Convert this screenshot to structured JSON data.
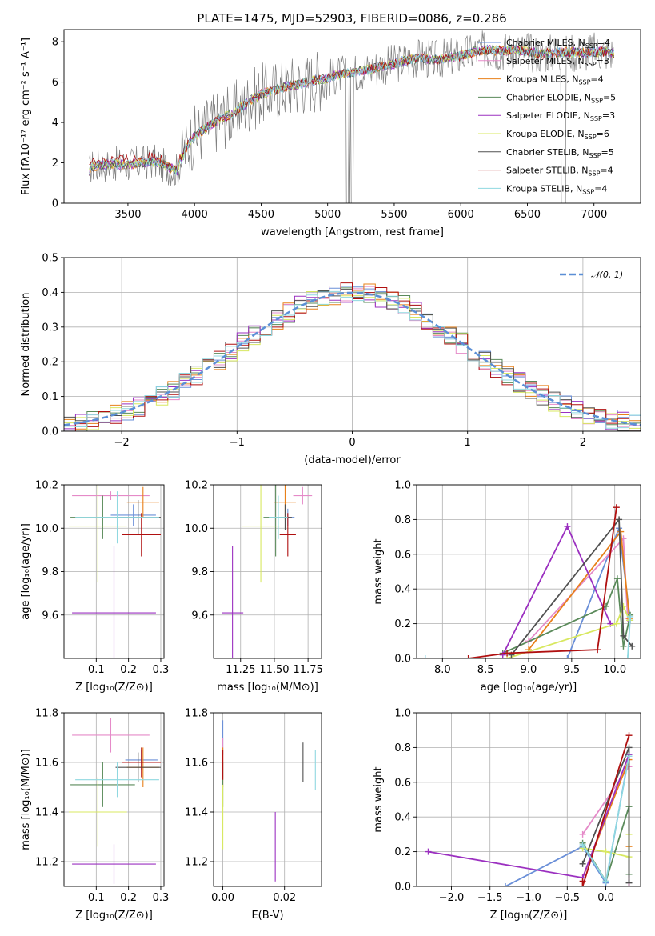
{
  "title": "PLATE=1475, MJD=52903, FIBERID=0086, z=0.286",
  "models": [
    {
      "name": "Chabrier MILES, N$_{SSP}$=4",
      "color": "#6a8fd8",
      "pre": "Chabrier MILES, N",
      "sub": "SSP",
      "post": "=4"
    },
    {
      "name": "Salpeter MILES, N$_{SSP}$=3",
      "color": "#e58ac8",
      "pre": "Salpeter MILES, N",
      "sub": "SSP",
      "post": "=3"
    },
    {
      "name": "Kroupa MILES, N$_{SSP}$=4",
      "color": "#e8801a",
      "pre": "Kroupa MILES, N",
      "sub": "SSP",
      "post": "=4"
    },
    {
      "name": "Chabrier ELODIE, N$_{SSP}$=5",
      "color": "#5a8a5a",
      "pre": "Chabrier ELODIE, N",
      "sub": "SSP",
      "post": "=5"
    },
    {
      "name": "Salpeter ELODIE, N$_{SSP}$=3",
      "color": "#9b30c0",
      "pre": "Salpeter ELODIE, N",
      "sub": "SSP",
      "post": "=3"
    },
    {
      "name": "Kroupa ELODIE, N$_{SSP}$=6",
      "color": "#d8e860",
      "pre": "Kroupa ELODIE, N",
      "sub": "SSP",
      "post": "=6"
    },
    {
      "name": "Chabrier STELIB, N$_{SSP}$=5",
      "color": "#505050",
      "pre": "Chabrier STELIB, N",
      "sub": "SSP",
      "post": "=5"
    },
    {
      "name": "Salpeter STELIB, N$_{SSP}$=4",
      "color": "#b01010",
      "pre": "Salpeter STELIB, N",
      "sub": "SSP",
      "post": "=4"
    },
    {
      "name": "Kroupa STELIB, N$_{SSP}$=4",
      "color": "#8fd8e0",
      "pre": "Kroupa STELIB, N",
      "sub": "SSP",
      "post": "=4"
    }
  ],
  "data_color": "#808080",
  "chart_data": [
    {
      "id": "spectrum",
      "type": "line",
      "xlabel": "wavelength [Angstrom, rest frame]",
      "ylabel": "Flux [fλ10⁻¹⁷ erg cm⁻² s⁻¹ A⁻¹]",
      "xlim": [
        3020,
        7350
      ],
      "ylim": [
        0,
        8.6
      ],
      "xticks": [
        3500,
        4000,
        4500,
        5000,
        5500,
        6000,
        6500,
        7000
      ],
      "yticks": [
        0,
        2,
        4,
        6,
        8
      ],
      "continuum": [
        [
          3210,
          1.5
        ],
        [
          3220,
          1.8
        ],
        [
          3300,
          1.9
        ],
        [
          3400,
          1.95
        ],
        [
          3500,
          1.9
        ],
        [
          3600,
          2.0
        ],
        [
          3700,
          2.05
        ],
        [
          3800,
          1.8
        ],
        [
          3870,
          1.6
        ],
        [
          3900,
          2.2
        ],
        [
          3950,
          2.9
        ],
        [
          4000,
          3.3
        ],
        [
          4100,
          3.8
        ],
        [
          4200,
          4.2
        ],
        [
          4300,
          4.5
        ],
        [
          4400,
          5.0
        ],
        [
          4500,
          5.4
        ],
        [
          4600,
          5.6
        ],
        [
          4700,
          5.8
        ],
        [
          4800,
          5.9
        ],
        [
          4900,
          6.1
        ],
        [
          5000,
          6.2
        ],
        [
          5100,
          6.4
        ],
        [
          5200,
          6.5
        ],
        [
          5300,
          6.6
        ],
        [
          5400,
          6.8
        ],
        [
          5500,
          6.9
        ],
        [
          5600,
          7.1
        ],
        [
          5700,
          7.2
        ],
        [
          5800,
          7.1
        ],
        [
          5900,
          7.2
        ],
        [
          6000,
          7.3
        ],
        [
          6100,
          7.5
        ],
        [
          6200,
          7.6
        ],
        [
          6300,
          7.55
        ],
        [
          6400,
          7.6
        ],
        [
          6500,
          7.5
        ],
        [
          6600,
          7.4
        ],
        [
          6700,
          7.45
        ],
        [
          6800,
          7.5
        ],
        [
          6900,
          7.45
        ],
        [
          7000,
          7.5
        ],
        [
          7100,
          7.5
        ],
        [
          7150,
          7.4
        ]
      ]
    },
    {
      "id": "residuals",
      "type": "histogram",
      "xlabel": "(data-model)/error",
      "ylabel": "Normed distribution",
      "xlim": [
        -2.5,
        2.5
      ],
      "ylim": [
        0,
        0.5
      ],
      "xticks": [
        -2,
        -1,
        0,
        1,
        2
      ],
      "yticks": [
        0.0,
        0.1,
        0.2,
        0.3,
        0.4,
        0.5
      ],
      "xtick_labels": [
        "−2",
        "−1",
        "0",
        "1",
        "2"
      ],
      "legend": "𝒩(0, 1)",
      "legend_position": "upper right",
      "bin_width": 0.1
    },
    {
      "id": "age-vs-z",
      "type": "errorbar",
      "xlabel": "Z [log₁₀(Z/Z⊙)]",
      "ylabel": "age  [log₁₀(age/yr)]",
      "xlim": [
        0.0,
        0.31
      ],
      "ylim": [
        9.4,
        10.2
      ],
      "xticks": [
        0.1,
        0.2,
        0.3
      ],
      "yticks": [
        9.6,
        9.8,
        10.0,
        10.2
      ],
      "points": [
        {
          "x": 0.215,
          "xe": 0.07,
          "y": 10.06,
          "ye": 0.05
        },
        {
          "x": 0.145,
          "xe": 0.12,
          "y": 10.15,
          "ye": 0.02
        },
        {
          "x": 0.245,
          "xe": 0.05,
          "y": 10.12,
          "ye": 0.07
        },
        {
          "x": 0.12,
          "xe": 0.1,
          "y": 10.05,
          "ye": 0.1
        },
        {
          "x": 0.155,
          "xe": 0.13,
          "y": 9.61,
          "ye": 0.31
        },
        {
          "x": 0.105,
          "xe": 0.09,
          "y": 10.01,
          "ye": 0.26
        },
        {
          "x": 0.23,
          "xe": 0.07,
          "y": 10.05,
          "ye": 0.08
        },
        {
          "x": 0.24,
          "xe": 0.06,
          "y": 9.97,
          "ye": 0.1
        },
        {
          "x": 0.165,
          "xe": 0.13,
          "y": 10.05,
          "ye": 0.12
        }
      ]
    },
    {
      "id": "age-vs-mass",
      "type": "errorbar",
      "xlabel": "mass [log₁₀(M/M⊙)]",
      "ylabel": "",
      "xlim": [
        11.05,
        11.85
      ],
      "ylim": [
        9.4,
        10.2
      ],
      "xticks": [
        11.25,
        11.5,
        11.75
      ],
      "yticks": [
        9.6,
        9.8,
        10.0,
        10.2
      ],
      "points": [
        {
          "x": 11.6,
          "xe": 0.05,
          "y": 10.05,
          "ye": 0.04
        },
        {
          "x": 11.71,
          "xe": 0.07,
          "y": 10.15,
          "ye": 0.04
        },
        {
          "x": 11.58,
          "xe": 0.08,
          "y": 10.12,
          "ye": 0.08
        },
        {
          "x": 11.51,
          "xe": 0.09,
          "y": 10.05,
          "ye": 0.18
        },
        {
          "x": 11.19,
          "xe": 0.08,
          "y": 9.61,
          "ye": 0.31
        },
        {
          "x": 11.4,
          "xe": 0.14,
          "y": 10.01,
          "ye": 0.26
        },
        {
          "x": 11.58,
          "xe": 0.05,
          "y": 10.05,
          "ye": 0.06
        },
        {
          "x": 11.6,
          "xe": 0.06,
          "y": 9.97,
          "ye": 0.1
        },
        {
          "x": 11.53,
          "xe": 0.07,
          "y": 10.05,
          "ye": 0.1
        }
      ]
    },
    {
      "id": "weight-vs-age",
      "type": "line",
      "xlabel": "age  [log₁₀(age/yr)]",
      "ylabel": "mass weight",
      "xlim": [
        7.7,
        10.3
      ],
      "ylim": [
        0,
        1.0
      ],
      "xticks": [
        8.0,
        8.5,
        9.0,
        9.5,
        10.0
      ],
      "yticks": [
        0.0,
        0.2,
        0.4,
        0.6,
        0.8,
        1.0
      ],
      "series": [
        {
          "x": [
            7.8,
            9.45,
            10.05,
            10.18
          ],
          "y": [
            0.0,
            0.0,
            0.75,
            0.22
          ]
        },
        {
          "x": [
            9.0,
            10.1,
            10.15
          ],
          "y": [
            0.1,
            0.69,
            0.23
          ]
        },
        {
          "x": [
            9.0,
            10.07,
            10.17
          ],
          "y": [
            0.05,
            0.73,
            0.23
          ]
        },
        {
          "x": [
            8.7,
            9.9,
            10.03,
            10.1,
            10.18
          ],
          "y": [
            0.03,
            0.3,
            0.46,
            0.07,
            0.25
          ]
        },
        {
          "x": [
            8.7,
            9.45,
            9.95
          ],
          "y": [
            0.02,
            0.76,
            0.2
          ]
        },
        {
          "x": [
            8.75,
            10.02,
            10.1,
            10.17
          ],
          "y": [
            0.0,
            0.2,
            0.3,
            0.22
          ]
        },
        {
          "x": [
            8.8,
            10.05,
            10.1,
            10.2
          ],
          "y": [
            0.02,
            0.8,
            0.13,
            0.07
          ]
        },
        {
          "x": [
            8.3,
            8.75,
            9.8,
            10.02
          ],
          "y": [
            0.0,
            0.03,
            0.05,
            0.87
          ]
        },
        {
          "x": [
            7.8,
            10.15,
            10.18
          ],
          "y": [
            0.0,
            0.0,
            0.24
          ]
        }
      ]
    },
    {
      "id": "mass-vs-z",
      "type": "errorbar",
      "xlabel": "Z [log₁₀(Z/Z⊙)]",
      "ylabel": "mass [log₁₀(M/M⊙)]",
      "xlim": [
        0.0,
        0.31
      ],
      "ylim": [
        11.1,
        11.8
      ],
      "xticks": [
        0.1,
        0.2,
        0.3
      ],
      "yticks": [
        11.2,
        11.4,
        11.6,
        11.8
      ],
      "points": [
        {
          "x": 0.24,
          "xe": 0.05,
          "y": 11.61,
          "ye": 0.04
        },
        {
          "x": 0.145,
          "xe": 0.12,
          "y": 11.71,
          "ye": 0.07
        },
        {
          "x": 0.245,
          "xe": 0.05,
          "y": 11.58,
          "ye": 0.08
        },
        {
          "x": 0.12,
          "xe": 0.1,
          "y": 11.51,
          "ye": 0.09
        },
        {
          "x": 0.155,
          "xe": 0.13,
          "y": 11.19,
          "ye": 0.08
        },
        {
          "x": 0.105,
          "xe": 0.09,
          "y": 11.4,
          "ye": 0.14
        },
        {
          "x": 0.23,
          "xe": 0.07,
          "y": 11.58,
          "ye": 0.06
        },
        {
          "x": 0.24,
          "xe": 0.06,
          "y": 11.6,
          "ye": 0.06
        },
        {
          "x": 0.165,
          "xe": 0.13,
          "y": 11.53,
          "ye": 0.07
        }
      ]
    },
    {
      "id": "mass-vs-ebv",
      "type": "errorbar",
      "xlabel": "E(B-V)",
      "ylabel": "",
      "xlim": [
        -0.003,
        0.032
      ],
      "ylim": [
        11.1,
        11.8
      ],
      "xticks": [
        0.0,
        0.02
      ],
      "yticks": [
        11.2,
        11.4,
        11.6,
        11.8
      ],
      "xtick_labels": [
        "0.00",
        "0.02"
      ],
      "points": [
        {
          "x": 0.0,
          "xe": 0.0,
          "y": 11.7,
          "ye": 0.07
        },
        {
          "x": 0.0,
          "xe": 0.0,
          "y": 11.62,
          "ye": 0.08
        },
        {
          "x": 0.0,
          "xe": 0.0,
          "y": 11.58,
          "ye": 0.08
        },
        {
          "x": 0.0,
          "xe": 0.0,
          "y": 11.51,
          "ye": 0.09
        },
        {
          "x": 0.017,
          "xe": 0.0,
          "y": 11.26,
          "ye": 0.14
        },
        {
          "x": 0.0,
          "xe": 0.0,
          "y": 11.38,
          "ye": 0.13
        },
        {
          "x": 0.026,
          "xe": 0.0,
          "y": 11.6,
          "ye": 0.08
        },
        {
          "x": 0.0,
          "xe": 0.0,
          "y": 11.59,
          "ye": 0.06
        },
        {
          "x": 0.03,
          "xe": 0.0,
          "y": 11.57,
          "ye": 0.08
        }
      ]
    },
    {
      "id": "weight-vs-z",
      "type": "line",
      "xlabel": "Z [log₁₀(Z/Z⊙)]",
      "ylabel": "mass weight",
      "xlim": [
        -2.45,
        0.45
      ],
      "ylim": [
        0,
        1.0
      ],
      "xticks": [
        -2.0,
        -1.5,
        -1.0,
        -0.5,
        0.0
      ],
      "yticks": [
        0.0,
        0.2,
        0.4,
        0.6,
        0.8,
        1.0
      ],
      "xtick_labels": [
        "−2.0",
        "−1.5",
        "−1.0",
        "−0.5",
        "0.0"
      ],
      "series": [
        {
          "x": [
            -1.3,
            -0.3,
            0.0,
            0.3
          ],
          "y": [
            0.0,
            0.23,
            0.02,
            0.76
          ]
        },
        {
          "x": [
            -0.3,
            0.3,
            0.3
          ],
          "y": [
            0.3,
            0.69,
            0.0
          ]
        },
        {
          "x": [
            -0.3,
            0.3,
            0.3
          ],
          "y": [
            0.05,
            0.73,
            0.23
          ]
        },
        {
          "x": [
            -0.3,
            0.0,
            0.3,
            0.3
          ],
          "y": [
            0.25,
            0.03,
            0.46,
            0.07
          ]
        },
        {
          "x": [
            -2.3,
            -0.3,
            0.3
          ],
          "y": [
            0.2,
            0.05,
            0.76
          ]
        },
        {
          "x": [
            -0.3,
            0.0,
            0.3,
            0.3
          ],
          "y": [
            0.22,
            0.2,
            0.17,
            0.3
          ]
        },
        {
          "x": [
            -0.3,
            0.3,
            0.3
          ],
          "y": [
            0.13,
            0.8,
            0.02
          ]
        },
        {
          "x": [
            -0.3,
            -0.3,
            0.3
          ],
          "y": [
            0.03,
            0.0,
            0.87
          ]
        },
        {
          "x": [
            -0.3,
            0.0,
            0.3
          ],
          "y": [
            0.24,
            0.03,
            0.75
          ]
        }
      ]
    }
  ]
}
